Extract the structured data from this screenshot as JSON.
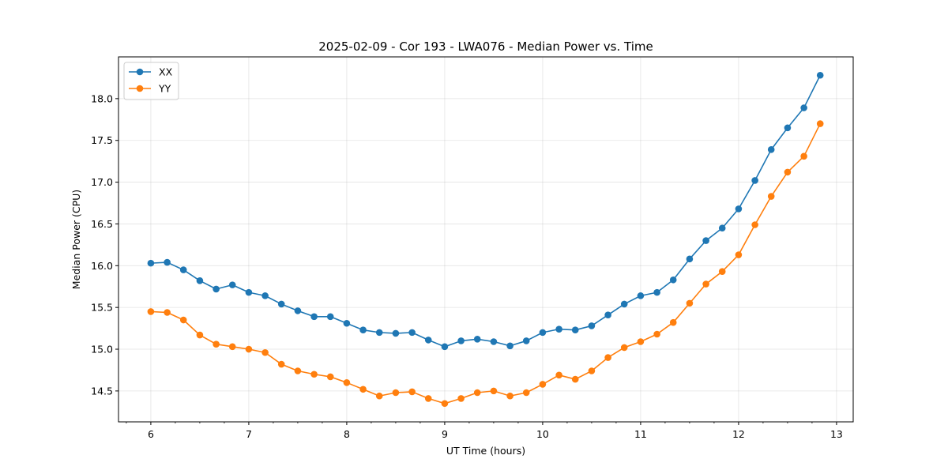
{
  "chart_data": {
    "type": "line",
    "title": "2025-02-09 - Cor 193 - LWA076 - Median Power vs. Time",
    "xlabel": "UT Time (hours)",
    "ylabel": "Median Power (CPU)",
    "xlim": [
      5.67,
      13.17
    ],
    "ylim": [
      14.13,
      18.5
    ],
    "xticks": [
      6,
      7,
      8,
      9,
      10,
      11,
      12,
      13
    ],
    "xtick_labels": [
      "6",
      "7",
      "8",
      "9",
      "10",
      "11",
      "12",
      "13"
    ],
    "yticks": [
      14.5,
      15.0,
      15.5,
      16.0,
      16.5,
      17.0,
      17.5,
      18.0
    ],
    "ytick_labels": [
      "14.5",
      "15.0",
      "15.5",
      "16.0",
      "16.5",
      "17.0",
      "17.5",
      "18.0"
    ],
    "grid": true,
    "legend_position": "top-left",
    "x": [
      6.0,
      6.167,
      6.333,
      6.5,
      6.667,
      6.833,
      7.0,
      7.167,
      7.333,
      7.5,
      7.667,
      7.833,
      8.0,
      8.167,
      8.333,
      8.5,
      8.667,
      8.833,
      9.0,
      9.167,
      9.333,
      9.5,
      9.667,
      9.833,
      10.0,
      10.167,
      10.333,
      10.5,
      10.667,
      10.833,
      11.0,
      11.167,
      11.333,
      11.5,
      11.667,
      11.833,
      12.0,
      12.167,
      12.333,
      12.5,
      12.667,
      12.833
    ],
    "series": [
      {
        "name": "XX",
        "color": "#1f77b4",
        "values": [
          16.03,
          16.04,
          15.95,
          15.82,
          15.72,
          15.77,
          15.68,
          15.64,
          15.54,
          15.46,
          15.39,
          15.39,
          15.31,
          15.23,
          15.2,
          15.19,
          15.2,
          15.11,
          15.03,
          15.1,
          15.12,
          15.09,
          15.04,
          15.1,
          15.2,
          15.24,
          15.23,
          15.28,
          15.41,
          15.54,
          15.64,
          15.68,
          15.83,
          16.08,
          16.3,
          16.45,
          16.68,
          17.02,
          17.39,
          17.65,
          17.89,
          18.28
        ]
      },
      {
        "name": "YY",
        "color": "#ff7f0e",
        "values": [
          15.45,
          15.44,
          15.35,
          15.17,
          15.06,
          15.03,
          15.0,
          14.96,
          14.82,
          14.74,
          14.7,
          14.67,
          14.6,
          14.52,
          14.44,
          14.48,
          14.49,
          14.41,
          14.35,
          14.41,
          14.48,
          14.5,
          14.44,
          14.48,
          14.58,
          14.69,
          14.64,
          14.74,
          14.9,
          15.02,
          15.09,
          15.18,
          15.32,
          15.55,
          15.78,
          15.93,
          16.13,
          16.49,
          16.83,
          17.12,
          17.31,
          17.7
        ]
      }
    ]
  }
}
